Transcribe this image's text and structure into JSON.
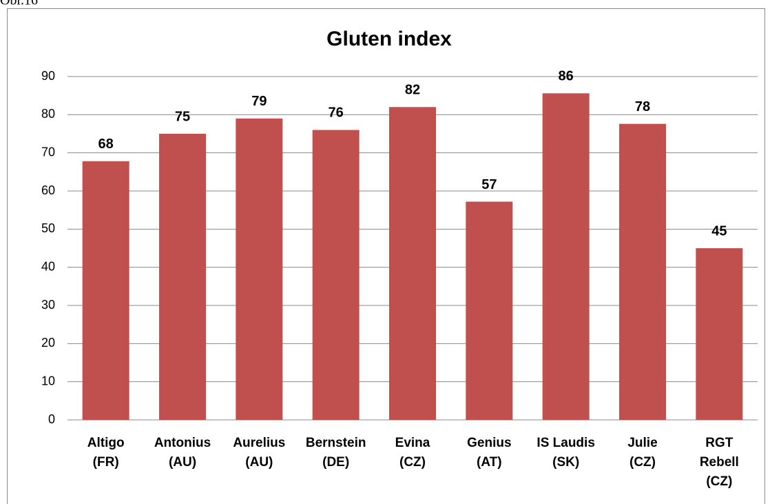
{
  "caption": "Obr.16",
  "chart_data": {
    "type": "bar",
    "title": "Gluten index",
    "categories": [
      "Altigo\n(FR)",
      "Antonius\n(AU)",
      "Aurelius\n(AU)",
      "Bernstein\n(DE)",
      "Evina\n(CZ)",
      "Genius\n(AT)",
      "IS Laudis\n(SK)",
      "Julie\n(CZ)",
      "RGT\nRebell\n(CZ)"
    ],
    "values": [
      67.8,
      75,
      79,
      76,
      82,
      57.2,
      85.6,
      77.6,
      45
    ],
    "value_labels": [
      "68",
      "75",
      "79",
      "76",
      "82",
      "57",
      "86",
      "78",
      "45"
    ],
    "color": "#c0504d",
    "ylim": [
      0,
      90
    ],
    "yticks": [
      0,
      10,
      20,
      30,
      40,
      50,
      60,
      70,
      80,
      90
    ],
    "grid": true
  }
}
